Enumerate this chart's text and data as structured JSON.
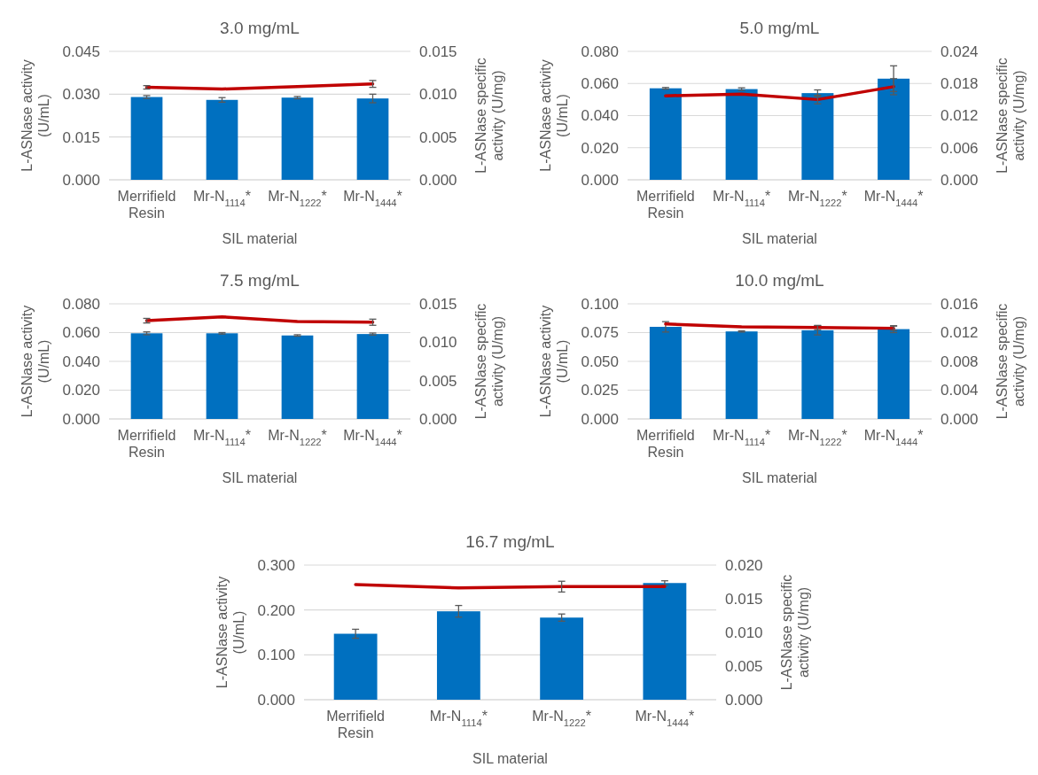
{
  "chart_data": [
    {
      "type": "bar",
      "title": "3.0 mg/mL",
      "xlabel": "SIL material",
      "ylabel": "L-ASNase activity (U/mL)",
      "y2label": "L-ASNase specific activity (U/mg)",
      "categories": [
        "Merrifield Resin",
        "Mr-N$_{1114}$*",
        "Mr-N$_{1222}$*",
        "Mr-N$_{1444}$*"
      ],
      "ylim": [
        0,
        0.045
      ],
      "yticks": [
        {
          "value": 0,
          "label": "0.000"
        },
        {
          "value": 0.015,
          "label": "0.015"
        },
        {
          "value": 0.03,
          "label": "0.030"
        },
        {
          "value": 0.045,
          "label": "0.045"
        }
      ],
      "y2lim": [
        0,
        0.015
      ],
      "y2ticks": [
        {
          "value": 0,
          "label": "0.000"
        },
        {
          "value": 0.005,
          "label": "0.005"
        },
        {
          "value": 0.01,
          "label": "0.010"
        },
        {
          "value": 0.015,
          "label": "0.015"
        }
      ],
      "grid": "y",
      "series": [
        {
          "color": "#0070c0",
          "values": [
            0.029,
            0.028,
            0.0288,
            0.0285
          ],
          "errors": [
            0.0005,
            0.0008,
            0.0004,
            0.0015
          ]
        },
        {
          "type": "line",
          "axis": "y2",
          "color": "#c00000",
          "values": [
            0.0108,
            0.0106,
            0.0109,
            0.0112
          ],
          "errors": [
            0.0002,
            null,
            null,
            0.0004
          ]
        }
      ]
    },
    {
      "type": "bar",
      "title": "5.0 mg/mL",
      "xlabel": "SIL material",
      "ylabel": "L-ASNase activity (U/mL)",
      "y2label": "L-ASNase specific activity (U/mg)",
      "categories": [
        "Merrifield Resin",
        "Mr-N$_{1114}$*",
        "Mr-N$_{1222}$*",
        "Mr-N$_{1444}$*"
      ],
      "ylim": [
        0,
        0.08
      ],
      "yticks": [
        {
          "value": 0,
          "label": "0.000"
        },
        {
          "value": 0.02,
          "label": "0.020"
        },
        {
          "value": 0.04,
          "label": "0.040"
        },
        {
          "value": 0.06,
          "label": "0.060"
        },
        {
          "value": 0.08,
          "label": "0.080"
        }
      ],
      "y2lim": [
        0,
        0.024
      ],
      "y2ticks": [
        {
          "value": 0,
          "label": "0.000"
        },
        {
          "value": 0.006,
          "label": "0.006"
        },
        {
          "value": 0.012,
          "label": "0.012"
        },
        {
          "value": 0.018,
          "label": "0.018"
        },
        {
          "value": 0.024,
          "label": "0.024"
        }
      ],
      "grid": "y",
      "series": [
        {
          "color": "#0070c0",
          "values": [
            0.057,
            0.0565,
            0.054,
            0.063
          ],
          "errors": [
            0.0005,
            0.0008,
            0.002,
            0.008
          ]
        },
        {
          "type": "line",
          "axis": "y2",
          "color": "#c00000",
          "values": [
            0.0157,
            0.016,
            0.015,
            0.0174
          ],
          "errors": [
            null,
            null,
            0.0008,
            0.0015
          ]
        }
      ]
    },
    {
      "type": "bar",
      "title": "7.5 mg/mL",
      "xlabel": "SIL material",
      "ylabel": "L-ASNase activity (U/mL)",
      "y2label": "L-ASNase specific activity (U/mg)",
      "categories": [
        "Merrifield Resin",
        "Mr-N$_{1114}$*",
        "Mr-N$_{1222}$*",
        "Mr-N$_{1444}$*"
      ],
      "ylim": [
        0,
        0.08
      ],
      "yticks": [
        {
          "value": 0,
          "label": "0.000"
        },
        {
          "value": 0.02,
          "label": "0.020"
        },
        {
          "value": 0.04,
          "label": "0.040"
        },
        {
          "value": 0.06,
          "label": "0.060"
        },
        {
          "value": 0.08,
          "label": "0.080"
        }
      ],
      "y2lim": [
        0,
        0.015
      ],
      "y2ticks": [
        {
          "value": 0,
          "label": "0.000"
        },
        {
          "value": 0.005,
          "label": "0.005"
        },
        {
          "value": 0.01,
          "label": "0.010"
        },
        {
          "value": 0.015,
          "label": "0.015"
        }
      ],
      "grid": "y",
      "series": [
        {
          "color": "#0070c0",
          "values": [
            0.0595,
            0.0595,
            0.058,
            0.059
          ],
          "errors": [
            0.001,
            0.0005,
            0.0005,
            0.0007
          ]
        },
        {
          "type": "line",
          "axis": "y2",
          "color": "#c00000",
          "values": [
            0.0128,
            0.0133,
            0.0127,
            0.0126
          ],
          "errors": [
            0.0003,
            null,
            null,
            0.0004
          ]
        }
      ]
    },
    {
      "type": "bar",
      "title": "10.0 mg/mL",
      "xlabel": "SIL material",
      "ylabel": "L-ASNase activity (U/mL)",
      "y2label": "L-ASNase specific activity (U/mg)",
      "categories": [
        "Merrifield Resin",
        "Mr-N$_{1114}$*",
        "Mr-N$_{1222}$*",
        "Mr-N$_{1444}$*"
      ],
      "ylim": [
        0,
        0.1
      ],
      "yticks": [
        {
          "value": 0,
          "label": "0.000"
        },
        {
          "value": 0.025,
          "label": "0.025"
        },
        {
          "value": 0.05,
          "label": "0.050"
        },
        {
          "value": 0.075,
          "label": "0.075"
        },
        {
          "value": 0.1,
          "label": "0.100"
        }
      ],
      "y2lim": [
        0,
        0.016
      ],
      "y2ticks": [
        {
          "value": 0,
          "label": "0.000"
        },
        {
          "value": 0.004,
          "label": "0.004"
        },
        {
          "value": 0.008,
          "label": "0.008"
        },
        {
          "value": 0.012,
          "label": "0.012"
        },
        {
          "value": 0.016,
          "label": "0.016"
        }
      ],
      "grid": "y",
      "series": [
        {
          "color": "#0070c0",
          "values": [
            0.08,
            0.076,
            0.077,
            0.078
          ],
          "errors": [
            0.0045,
            0.0005,
            0.004,
            0.003
          ]
        },
        {
          "type": "line",
          "axis": "y2",
          "color": "#c00000",
          "values": [
            0.0132,
            0.0128,
            0.0127,
            0.0126
          ],
          "errors": [
            null,
            null,
            0.0003,
            0.0003
          ]
        }
      ]
    },
    {
      "type": "bar",
      "title": "16.7 mg/mL",
      "xlabel": "SIL material",
      "ylabel": "L-ASNase activity (U/mL)",
      "y2label": "L-ASNase specific activity (U/mg)",
      "categories": [
        "Merrifield Resin",
        "Mr-N$_{1114}$*",
        "Mr-N$_{1222}$*",
        "Mr-N$_{1444}$*"
      ],
      "ylim": [
        0,
        0.3
      ],
      "yticks": [
        {
          "value": 0,
          "label": "0.000"
        },
        {
          "value": 0.1,
          "label": "0.100"
        },
        {
          "value": 0.2,
          "label": "0.200"
        },
        {
          "value": 0.3,
          "label": "0.300"
        }
      ],
      "y2lim": [
        0,
        0.02
      ],
      "y2ticks": [
        {
          "value": 0,
          "label": "0.000"
        },
        {
          "value": 0.005,
          "label": "0.005"
        },
        {
          "value": 0.01,
          "label": "0.010"
        },
        {
          "value": 0.015,
          "label": "0.015"
        },
        {
          "value": 0.02,
          "label": "0.020"
        }
      ],
      "grid": "y",
      "series": [
        {
          "color": "#0070c0",
          "values": [
            0.147,
            0.197,
            0.183,
            0.26
          ],
          "errors": [
            0.01,
            0.013,
            0.008,
            0.005
          ]
        },
        {
          "type": "line",
          "axis": "y2",
          "color": "#c00000",
          "values": [
            0.0171,
            0.0166,
            0.0168,
            0.0168
          ],
          "errors": [
            null,
            null,
            0.0008,
            null
          ]
        }
      ]
    }
  ]
}
